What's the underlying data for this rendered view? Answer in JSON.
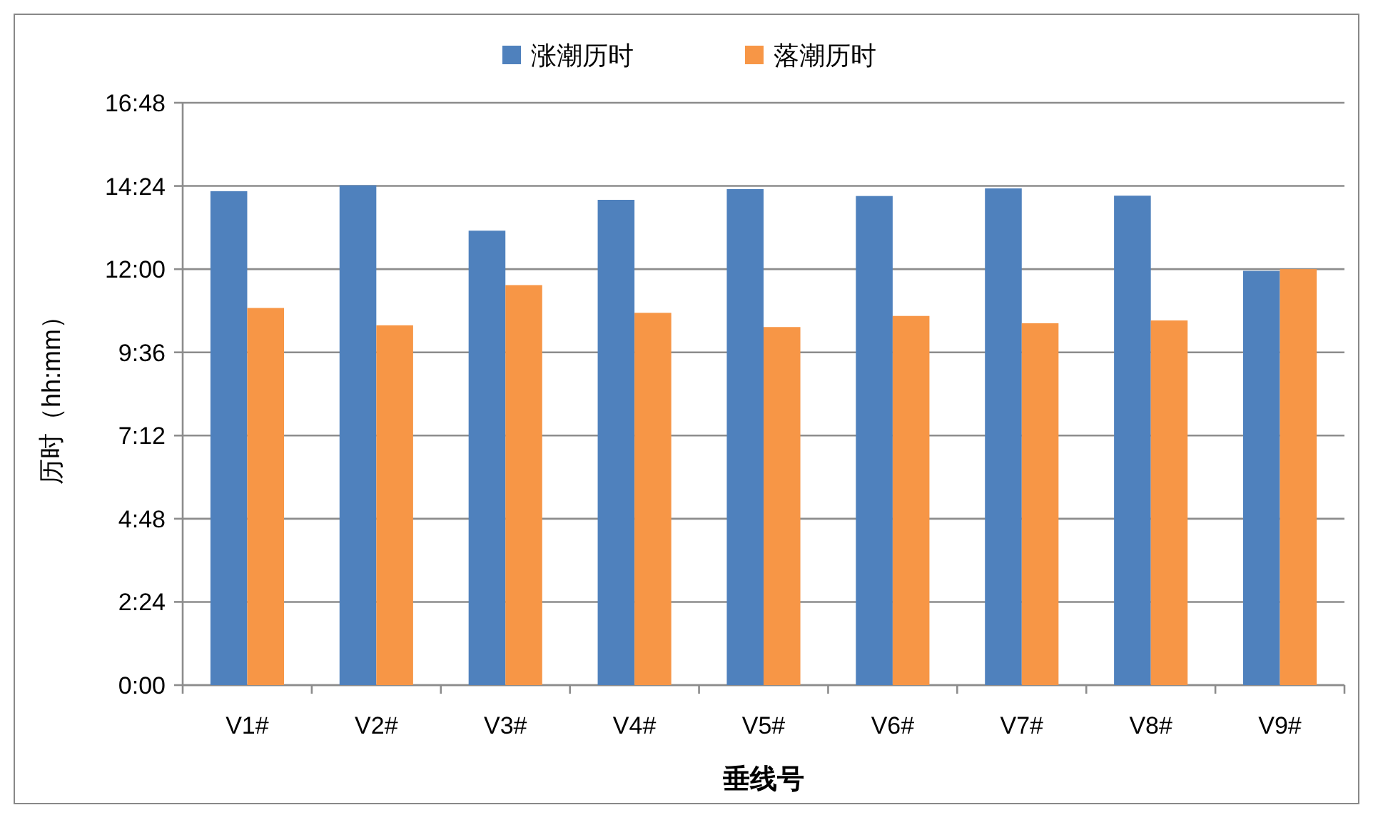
{
  "chart_data": {
    "type": "bar",
    "xlabel": "垂线号",
    "ylabel": "历时（hh:mm）",
    "categories": [
      "V1#",
      "V2#",
      "V3#",
      "V4#",
      "V5#",
      "V6#",
      "V7#",
      "V8#",
      "V9#"
    ],
    "series": [
      {
        "name": "涨潮历时",
        "color": "#4f81bd",
        "values": [
          14.25,
          14.42,
          13.11,
          14.0,
          14.31,
          14.11,
          14.33,
          14.12,
          11.95
        ]
      },
      {
        "name": "落潮历时",
        "color": "#f79646",
        "values": [
          10.88,
          10.38,
          11.54,
          10.74,
          10.33,
          10.65,
          10.44,
          10.52,
          12.0
        ]
      }
    ],
    "ylim": [
      0,
      16.8
    ],
    "yticks": [
      {
        "value": 0,
        "label": "0:00"
      },
      {
        "value": 2.4,
        "label": "2:24"
      },
      {
        "value": 4.8,
        "label": "4:48"
      },
      {
        "value": 7.2,
        "label": "7:12"
      },
      {
        "value": 9.6,
        "label": "9:36"
      },
      {
        "value": 12,
        "label": "12:00"
      },
      {
        "value": 14.4,
        "label": "14:24"
      },
      {
        "value": 16.8,
        "label": "16:48"
      }
    ],
    "grid": "y",
    "legend": "top"
  }
}
